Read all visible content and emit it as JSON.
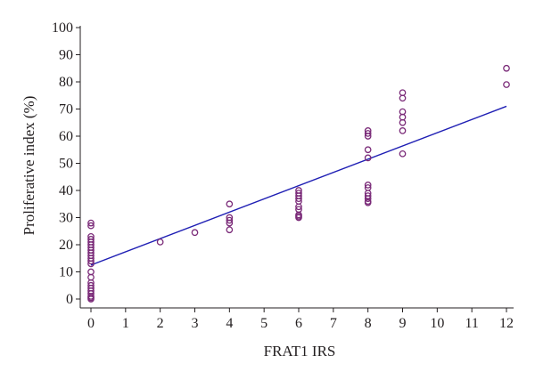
{
  "chart_data": {
    "type": "scatter",
    "title": "",
    "xlabel": "FRAT1 IRS",
    "ylabel": "Proliferative index (%)",
    "xlim": [
      0,
      12
    ],
    "ylim": [
      0,
      100
    ],
    "x_ticks": [
      0,
      1,
      2,
      3,
      4,
      5,
      6,
      7,
      8,
      9,
      10,
      11,
      12
    ],
    "y_ticks": [
      0,
      10,
      20,
      30,
      40,
      50,
      60,
      70,
      80,
      90,
      100
    ],
    "grid": false,
    "legend": "none",
    "colors": {
      "points": "#7a2a78",
      "fit_line": "#1f1fb4",
      "axes": "#231f20"
    },
    "series": [
      {
        "kind": "points",
        "x": [
          0,
          0,
          0,
          0,
          0,
          0,
          0,
          0,
          0,
          0,
          0,
          0,
          0,
          0,
          0,
          0,
          0,
          0,
          0,
          0,
          0,
          0,
          0,
          2,
          3,
          4,
          4,
          4,
          4,
          4,
          6,
          6,
          6,
          6,
          6,
          6,
          6,
          6,
          6,
          6,
          8,
          8,
          8,
          8,
          8,
          8,
          8,
          8,
          8,
          8,
          8,
          8,
          9,
          9,
          9,
          9,
          9,
          9,
          9,
          12,
          12
        ],
        "y": [
          28,
          27,
          23,
          22,
          21,
          20,
          19,
          18,
          17,
          16,
          15,
          14,
          13,
          10,
          8,
          6,
          5,
          4,
          3,
          2,
          1,
          0.5,
          0,
          21,
          24.5,
          35,
          30,
          29,
          28,
          25.5,
          40,
          39,
          38,
          37,
          36,
          34,
          33,
          31,
          30.5,
          30,
          62,
          61,
          60,
          55,
          52,
          42,
          41,
          39,
          38,
          37,
          36,
          35.5,
          76,
          74,
          69,
          67,
          65,
          62,
          53.5,
          85,
          79
        ]
      },
      {
        "kind": "regression_line",
        "x": [
          0,
          12
        ],
        "y": [
          12.5,
          71
        ]
      }
    ]
  }
}
